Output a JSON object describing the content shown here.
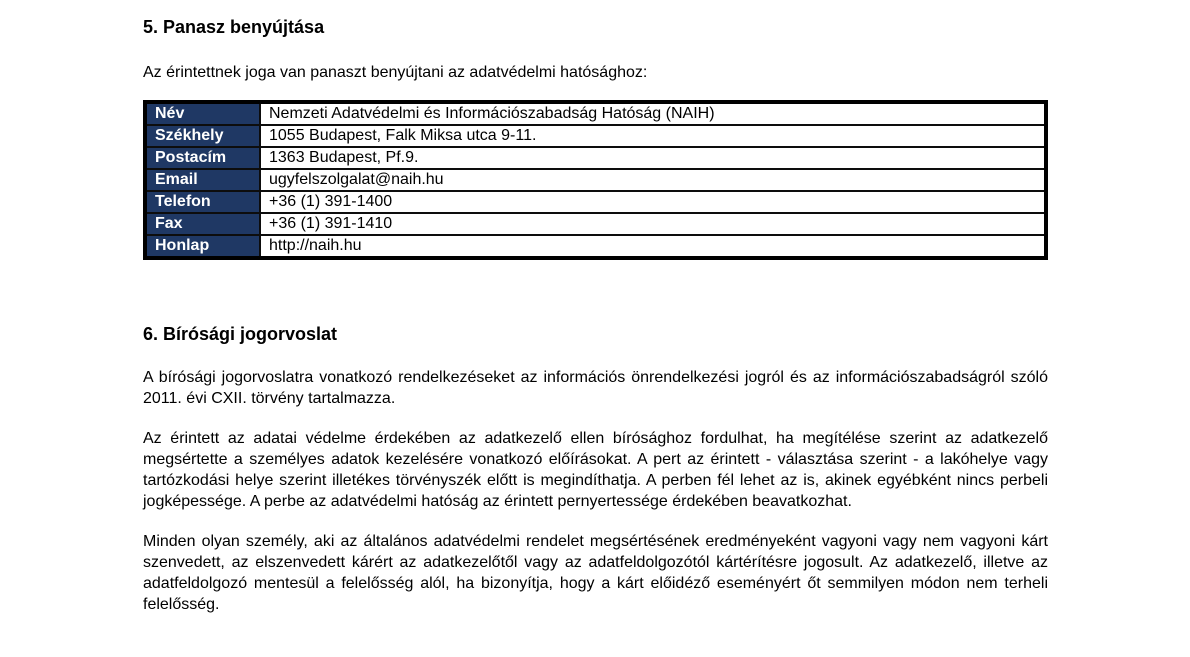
{
  "colors": {
    "table_label_bg": "#1F3864",
    "table_label_text": "#ffffff",
    "table_border": "#000000",
    "body_text": "#000000"
  },
  "section5": {
    "heading": "5. Panasz benyújtása",
    "intro": "Az érintettnek joga van panaszt benyújtani az adatvédelmi hatósághoz:"
  },
  "authority_table": {
    "rows": [
      {
        "label": "Név",
        "value": "Nemzeti Adatvédelmi és Információszabadság Hatóság (NAIH)"
      },
      {
        "label": "Székhely",
        "value": "1055 Budapest, Falk Miksa utca 9-11."
      },
      {
        "label": "Postacím",
        "value": "1363 Budapest, Pf.9."
      },
      {
        "label": "Email",
        "value": "ugyfelszolgalat@naih.hu"
      },
      {
        "label": "Telefon",
        "value": "+36 (1) 391-1400"
      },
      {
        "label": "Fax",
        "value": "+36 (1) 391-1410"
      },
      {
        "label": "Honlap",
        "value": "http://naih.hu"
      }
    ]
  },
  "section6": {
    "heading": "6. Bírósági jogorvoslat",
    "paragraphs": [
      "A bírósági jogorvoslatra vonatkozó rendelkezéseket az információs önrendelkezési jogról és az információszabadságról szóló 2011. évi CXII. törvény tartalmazza.",
      "Az érintett az adatai védelme érdekében az adatkezelő ellen bírósághoz fordulhat, ha megítélése szerint az adatkezelő megsértette a személyes adatok kezelésére vonatkozó előírásokat. A pert az érintett - választása szerint - a lakóhelye vagy tartózkodási helye szerint illetékes törvényszék előtt is megindíthatja. A perben fél lehet az is, akinek egyébként nincs perbeli jogképessége. A perbe az adatvédelmi hatóság az érintett pernyertessége érdekében beavatkozhat.",
      "Minden olyan személy, aki az általános adatvédelmi rendelet megsértésének eredményeként vagyoni vagy nem vagyoni kárt szenvedett, az elszenvedett kárért az adatkezelőtől vagy az adatfeldolgozótól kártérítésre jogosult. Az adatkezelő, illetve az adatfeldolgozó mentesül a felelősség alól, ha bizonyítja, hogy a kárt előidéző eseményért őt semmilyen módon nem terheli felelősség."
    ]
  }
}
